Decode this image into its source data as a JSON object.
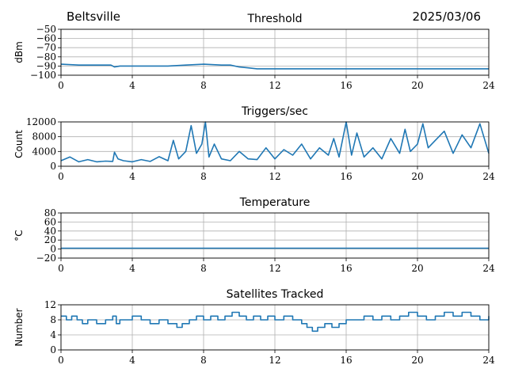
{
  "header": {
    "location": "Beltsville",
    "date": "2025/03/06"
  },
  "colors": {
    "series": "#1f77b4",
    "grid": "#b0b0b0",
    "axes": "#000000"
  },
  "chart_data": [
    {
      "type": "line",
      "title": "Threshold",
      "ylabel": "dBm",
      "xlim": [
        0,
        24
      ],
      "ylim": [
        -100,
        -50
      ],
      "xticks": [
        0,
        4,
        8,
        12,
        16,
        20,
        24
      ],
      "yticks": [
        -100,
        -90,
        -80,
        -70,
        -60,
        -50
      ],
      "grid": true,
      "series": [
        {
          "x": [
            0,
            1,
            2,
            2.8,
            3,
            3.3,
            4,
            5,
            6,
            7,
            8,
            9,
            9.5,
            10,
            10.5,
            11,
            12,
            14,
            16,
            18,
            20,
            22,
            24
          ],
          "values": [
            -88,
            -89,
            -89,
            -89,
            -91,
            -90,
            -90,
            -90,
            -90,
            -89,
            -88,
            -89,
            -89,
            -91,
            -92,
            -93,
            -93,
            -93,
            -93,
            -93,
            -93,
            -93,
            -93
          ]
        }
      ]
    },
    {
      "type": "line",
      "title": "Triggers/sec",
      "ylabel": "Count",
      "xlim": [
        0,
        24
      ],
      "ylim": [
        0,
        12000
      ],
      "xticks": [
        0,
        4,
        8,
        12,
        16,
        20,
        24
      ],
      "yticks": [
        0,
        4000,
        8000,
        12000
      ],
      "grid": true,
      "series": [
        {
          "x": [
            0,
            0.5,
            1,
            1.5,
            2,
            2.5,
            2.9,
            3,
            3.2,
            3.5,
            4,
            4.5,
            5,
            5.5,
            6,
            6.3,
            6.6,
            7,
            7.3,
            7.6,
            7.9,
            8.1,
            8.3,
            8.6,
            9,
            9.5,
            10,
            10.5,
            11,
            11.5,
            12,
            12.5,
            13,
            13.5,
            14,
            14.5,
            15,
            15.3,
            15.6,
            16,
            16.3,
            16.6,
            17,
            17.5,
            18,
            18.5,
            19,
            19.3,
            19.6,
            20,
            20.3,
            20.6,
            21,
            21.5,
            22,
            22.5,
            23,
            23.5,
            24
          ],
          "values": [
            1500,
            2500,
            1200,
            1800,
            1200,
            1400,
            1300,
            3800,
            2000,
            1500,
            1200,
            1800,
            1300,
            2600,
            1500,
            7000,
            2000,
            4000,
            11000,
            3500,
            6000,
            12000,
            2500,
            6000,
            2000,
            1500,
            4000,
            2000,
            1800,
            5000,
            2000,
            4500,
            3000,
            6000,
            2000,
            5000,
            3000,
            7500,
            2500,
            12000,
            3000,
            9000,
            2500,
            5000,
            2000,
            7500,
            3500,
            10000,
            4000,
            6000,
            11500,
            5000,
            7000,
            9500,
            3500,
            8500,
            5000,
            11500,
            3500
          ]
        }
      ]
    },
    {
      "type": "line",
      "title": "Temperature",
      "ylabel": "°C",
      "xlim": [
        0,
        24
      ],
      "ylim": [
        -20,
        80
      ],
      "xticks": [
        0,
        4,
        8,
        12,
        16,
        20,
        24
      ],
      "yticks": [
        -20,
        0,
        20,
        40,
        60,
        80
      ],
      "grid": true,
      "series": [
        {
          "x": [
            0,
            24
          ],
          "values": [
            2,
            2
          ]
        }
      ]
    },
    {
      "type": "line",
      "step": true,
      "title": "Satellites Tracked",
      "ylabel": "Number",
      "xlim": [
        0,
        24
      ],
      "ylim": [
        0,
        12
      ],
      "xticks": [
        0,
        4,
        8,
        12,
        16,
        20,
        24
      ],
      "yticks": [
        0,
        4,
        8,
        12
      ],
      "grid": true,
      "series": [
        {
          "x": [
            0,
            0.3,
            0.6,
            0.9,
            1.2,
            1.5,
            2,
            2.5,
            2.9,
            3.1,
            3.3,
            3.7,
            4,
            4.5,
            5,
            5.5,
            6,
            6.5,
            6.8,
            7.2,
            7.6,
            8,
            8.4,
            8.8,
            9.2,
            9.6,
            10,
            10.4,
            10.8,
            11.2,
            11.6,
            12,
            12.5,
            13,
            13.5,
            13.8,
            14.1,
            14.4,
            14.8,
            15.2,
            15.6,
            16,
            16.5,
            17,
            17.5,
            18,
            18.5,
            19,
            19.5,
            20,
            20.5,
            21,
            21.5,
            22,
            22.5,
            23,
            23.5,
            24
          ],
          "values": [
            9,
            8,
            9,
            8,
            7,
            8,
            7,
            8,
            9,
            7,
            8,
            8,
            9,
            8,
            7,
            8,
            7,
            6,
            7,
            8,
            9,
            8,
            9,
            8,
            9,
            10,
            9,
            8,
            9,
            8,
            9,
            8,
            9,
            8,
            7,
            6,
            5,
            6,
            7,
            6,
            7,
            8,
            8,
            9,
            8,
            9,
            8,
            9,
            10,
            9,
            8,
            9,
            10,
            9,
            10,
            9,
            8,
            9
          ]
        }
      ]
    }
  ]
}
